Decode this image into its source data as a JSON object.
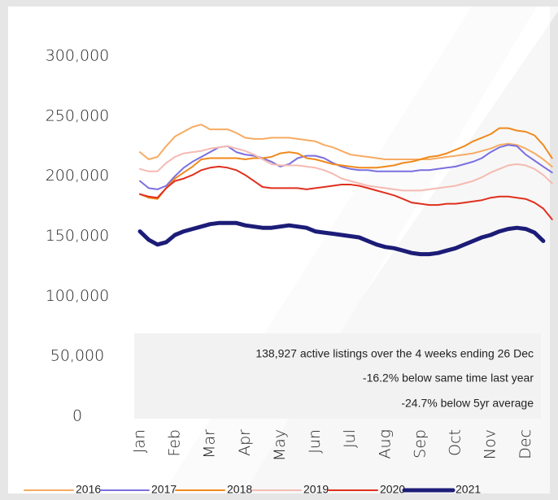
{
  "chart_data": {
    "type": "line",
    "categories": [
      "Jan",
      null,
      null,
      null,
      "Feb",
      null,
      null,
      null,
      "Mar",
      null,
      null,
      null,
      "Apr",
      null,
      null,
      null,
      "May",
      null,
      null,
      null,
      "Jun",
      null,
      null,
      null,
      "Jul",
      null,
      null,
      null,
      "Aug",
      null,
      null,
      null,
      "Sep",
      null,
      null,
      null,
      "Oct",
      null,
      null,
      null,
      "Nov",
      null,
      null,
      null,
      "Dec",
      null,
      null,
      null
    ],
    "series": [
      {
        "name": "2016",
        "color": "#f7ab63",
        "width": 2,
        "values": [
          220000,
          214000,
          216000,
          225000,
          233000,
          237000,
          241000,
          243000,
          239000,
          239000,
          239000,
          236000,
          232000,
          231000,
          231000,
          232000,
          232000,
          232000,
          231000,
          230000,
          229000,
          226000,
          224000,
          221000,
          218000,
          217000,
          216000,
          215000,
          214000,
          214000,
          214000,
          214000,
          214000,
          214000,
          215000,
          216000,
          217000,
          218000,
          219000,
          221000,
          223000,
          226000,
          227000,
          226000,
          223000,
          219000,
          214000,
          208000
        ]
      },
      {
        "name": "2017",
        "color": "#7b6fe0",
        "width": 2,
        "values": [
          196000,
          190000,
          189000,
          192000,
          200000,
          207000,
          212000,
          216000,
          220000,
          224000,
          225000,
          220000,
          218000,
          217000,
          215000,
          212000,
          208000,
          210000,
          215000,
          217000,
          217000,
          215000,
          211000,
          208000,
          206000,
          205000,
          205000,
          204000,
          204000,
          204000,
          204000,
          204000,
          205000,
          205000,
          206000,
          207000,
          208000,
          210000,
          212000,
          215000,
          220000,
          224000,
          226000,
          225000,
          218000,
          213000,
          208000,
          203000
        ]
      },
      {
        "name": "2018",
        "color": "#f08a1c",
        "width": 2,
        "values": [
          185000,
          182000,
          181000,
          190000,
          198000,
          203000,
          208000,
          214000,
          215000,
          215000,
          215000,
          215000,
          214000,
          215000,
          215000,
          216000,
          219000,
          220000,
          219000,
          215000,
          214000,
          212000,
          210000,
          209000,
          208000,
          207000,
          207000,
          207000,
          208000,
          209000,
          211000,
          212000,
          214000,
          216000,
          217000,
          219000,
          222000,
          225000,
          229000,
          232000,
          235000,
          240000,
          240000,
          238000,
          237000,
          234000,
          226000,
          215000
        ]
      },
      {
        "name": "2019",
        "color": "#f5bab2",
        "width": 2,
        "values": [
          206000,
          204000,
          204000,
          211000,
          216000,
          219000,
          220000,
          221000,
          223000,
          224000,
          225000,
          223000,
          221000,
          218000,
          214000,
          210000,
          209000,
          209000,
          209000,
          208000,
          207000,
          205000,
          202000,
          198000,
          196000,
          194000,
          192000,
          191000,
          190000,
          189000,
          188000,
          188000,
          188000,
          189000,
          190000,
          191000,
          192000,
          194000,
          196000,
          199000,
          203000,
          206000,
          209000,
          210000,
          209000,
          206000,
          201000,
          194000
        ]
      },
      {
        "name": "2020",
        "color": "#e0301e",
        "width": 2,
        "values": [
          185000,
          183000,
          182000,
          190000,
          196000,
          198000,
          201000,
          205000,
          207000,
          208000,
          207000,
          205000,
          201000,
          196000,
          191000,
          190000,
          190000,
          190000,
          190000,
          189000,
          190000,
          191000,
          192000,
          193000,
          193000,
          192000,
          190000,
          188000,
          186000,
          184000,
          181000,
          178000,
          177000,
          176000,
          176000,
          177000,
          177000,
          178000,
          179000,
          180000,
          182000,
          183000,
          183000,
          182000,
          181000,
          178000,
          173000,
          164000
        ]
      },
      {
        "name": "2021",
        "color": "#1c1c78",
        "width": 5,
        "values": [
          154000,
          147000,
          143000,
          145000,
          151000,
          154000,
          156000,
          158000,
          160000,
          161000,
          161000,
          161000,
          159000,
          158000,
          157000,
          157000,
          158000,
          159000,
          158000,
          157000,
          154000,
          153000,
          152000,
          151000,
          150000,
          149000,
          146000,
          143000,
          141000,
          140000,
          138000,
          136000,
          135000,
          135000,
          136000,
          138000,
          140000,
          143000,
          146000,
          149000,
          151000,
          154000,
          156000,
          157000,
          156000,
          153000,
          146000,
          null
        ]
      }
    ],
    "ylim": [
      0,
      300000
    ],
    "yticks": [
      {
        "value": 0,
        "label": "0"
      },
      {
        "value": 50000,
        "label": "50,000"
      },
      {
        "value": 100000,
        "label": "100,000"
      },
      {
        "value": 150000,
        "label": "150,000"
      },
      {
        "value": 200000,
        "label": "200,000"
      },
      {
        "value": 250000,
        "label": "250,000"
      },
      {
        "value": 300000,
        "label": "300,000"
      }
    ],
    "annotations": [
      "138,927 active listings over the 4 weeks ending 26 Dec",
      "-16.2% below same time last year",
      "-24.7% below 5yr average"
    ],
    "grid": false,
    "legend": "bottom"
  }
}
